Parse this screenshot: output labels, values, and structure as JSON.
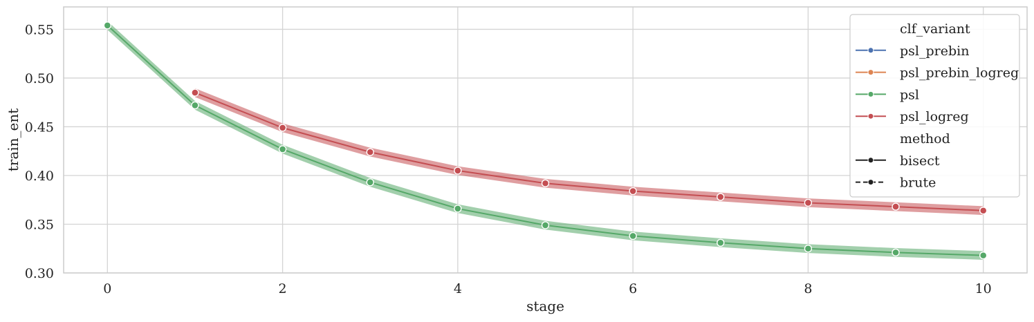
{
  "chart_data": {
    "type": "line",
    "xlabel": "stage",
    "ylabel": "train_ent",
    "xlim": [
      -0.5,
      10.5
    ],
    "ylim": [
      0.3,
      0.573
    ],
    "xticks": [
      0,
      2,
      4,
      6,
      8,
      10
    ],
    "xtick_labels": [
      "0",
      "2",
      "4",
      "6",
      "8",
      "10"
    ],
    "yticks": [
      0.3,
      0.35,
      0.4,
      0.45,
      0.5,
      0.55
    ],
    "ytick_labels": [
      "0.30",
      "0.35",
      "0.40",
      "0.45",
      "0.50",
      "0.55"
    ],
    "grid": true,
    "legend_position": "top-right",
    "legend": {
      "hue_title": "clf_variant",
      "hue_entries": [
        {
          "name": "psl_prebin",
          "color": "#4c72b0"
        },
        {
          "name": "psl_prebin_logreg",
          "color": "#dd8452"
        },
        {
          "name": "psl",
          "color": "#55a868"
        },
        {
          "name": "psl_logreg",
          "color": "#c44e52"
        }
      ],
      "style_title": "method",
      "style_entries": [
        {
          "name": "bisect",
          "dash": "solid"
        },
        {
          "name": "brute",
          "dash": "dashed"
        }
      ]
    },
    "series": [
      {
        "name": "psl",
        "color": "#55a868",
        "x": [
          0,
          1,
          2,
          3,
          4,
          5,
          6,
          7,
          8,
          9,
          10
        ],
        "y": [
          0.554,
          0.472,
          0.427,
          0.393,
          0.366,
          0.349,
          0.338,
          0.331,
          0.325,
          0.321,
          0.318
        ],
        "band_halfwidth": 0.0045
      },
      {
        "name": "psl_logreg",
        "color": "#c44e52",
        "x": [
          1,
          2,
          3,
          4,
          5,
          6,
          7,
          8,
          9,
          10
        ],
        "y": [
          0.485,
          0.449,
          0.424,
          0.405,
          0.392,
          0.384,
          0.378,
          0.372,
          0.368,
          0.364
        ],
        "band_halfwidth": 0.0045
      }
    ]
  }
}
